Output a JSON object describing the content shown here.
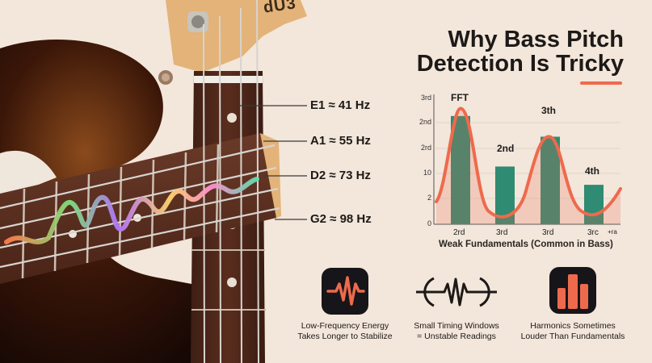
{
  "title": {
    "line1": "Why Bass Pitch",
    "line2": "Detection Is Tricky"
  },
  "headstock_logo": "dU3",
  "notes": [
    {
      "label": "E1 ≈ 41 Hz"
    },
    {
      "label": "A1 ≈ 55 Hz"
    },
    {
      "label": "D2 ≈ 73 Hz"
    },
    {
      "label": "G2 ≈ 98 Hz"
    }
  ],
  "colors": {
    "accent": "#ee6a4d",
    "bar": "#2f8b72",
    "tile": "#16151a"
  },
  "chart_data": {
    "type": "bar",
    "ytick_labels": [
      "3rd",
      "2nd",
      "2rd",
      "10",
      "2",
      "0"
    ],
    "xtick_labels": [
      "2rd",
      "3rd",
      "3rd",
      "3rc",
      "+ra"
    ],
    "bars": [
      {
        "label": "",
        "value": 2.25
      },
      {
        "label": "2nd",
        "value": 1.2
      },
      {
        "label": "3th",
        "value": 1.82
      },
      {
        "label": "4th",
        "value": 0.82
      }
    ],
    "curve_label": "FFT",
    "xlabel": "Weak Fundamentals (Common in Bass)",
    "ylim": [
      0,
      2.7
    ]
  },
  "features": [
    {
      "icon": "waveform-icon",
      "caption_line1": "Low-Frequency Energy",
      "caption_line2": "Takes Longer to Stabilize"
    },
    {
      "icon": "signal-window-icon",
      "caption_line1": "Small Timing Windows",
      "caption_line2": "= Unstable Readings"
    },
    {
      "icon": "bar-chart-icon",
      "caption_line1": "Harmonics Sometimes",
      "caption_line2": "Louder Than Fundamentals"
    }
  ]
}
